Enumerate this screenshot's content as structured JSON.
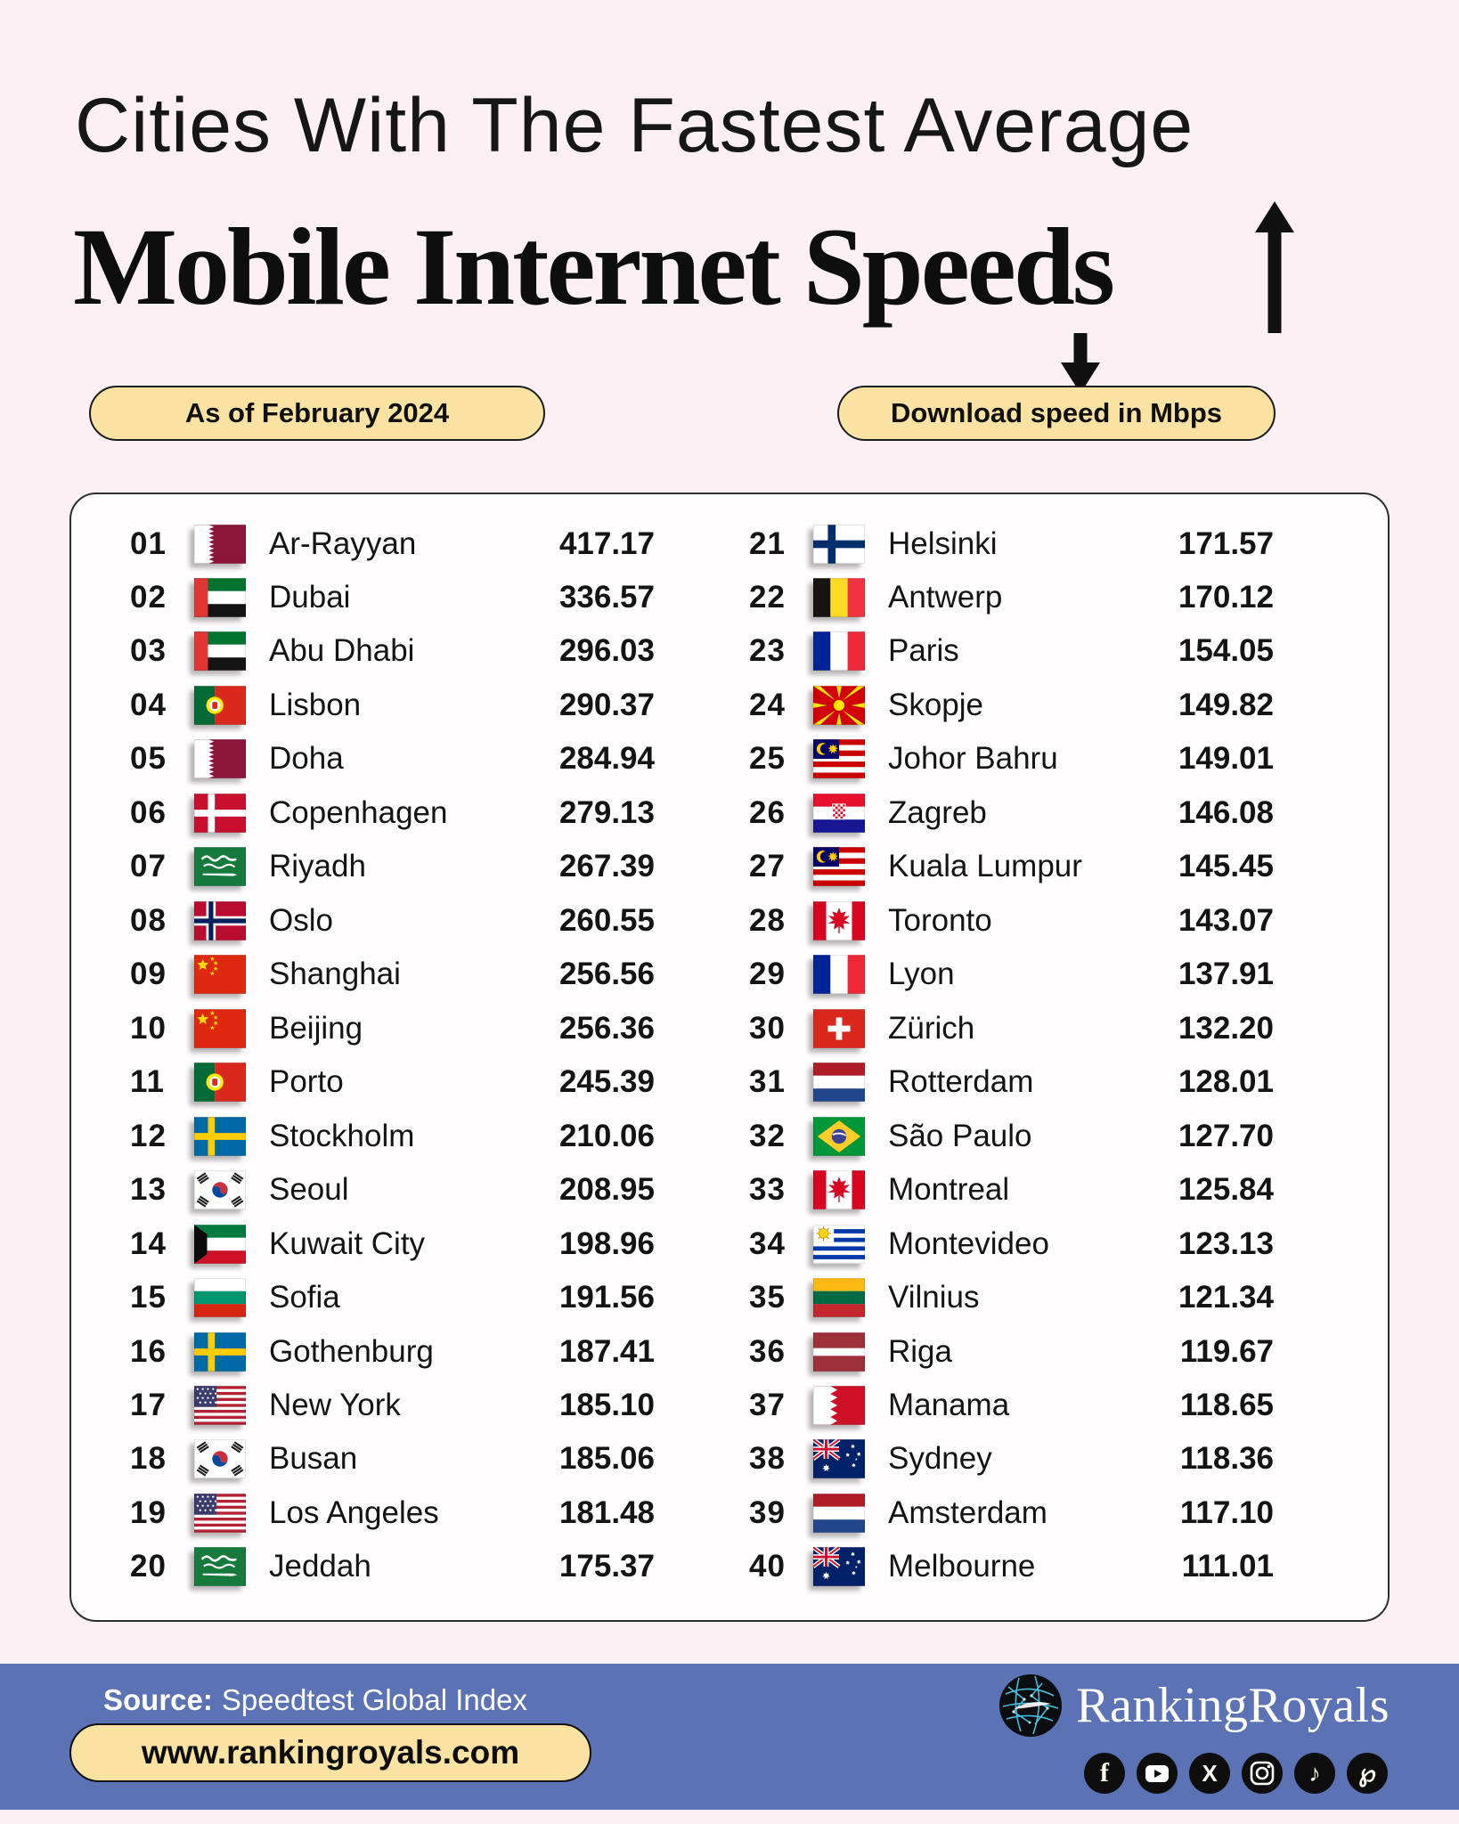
{
  "title": {
    "line1": "Cities With The Fastest Average",
    "line2": "Mobile Internet Speeds"
  },
  "badges": {
    "as_of": "As of February 2024",
    "unit": "Download speed in Mbps"
  },
  "icons": {
    "up_arrow": "up-arrow-icon",
    "down_arrow": "down-arrow-icon",
    "globe": "globe-network-icon"
  },
  "footer": {
    "source_label": "Source:",
    "source_value": "Speedtest Global Index",
    "website": "www.rankingroyals.com",
    "brand": "RankingRoyals",
    "social_icons": [
      "facebook",
      "youtube",
      "x",
      "instagram",
      "tiktok",
      "pinterest"
    ]
  },
  "colors": {
    "background_pink": "#fcf0f4",
    "panel_white": "#fffdfd",
    "accent_yellow": "#fae2a2",
    "footer_blue": "#5b72b4",
    "text_black": "#141414"
  },
  "chart_data": {
    "type": "table",
    "title": "Cities With The Fastest Average Mobile Internet Speeds",
    "as_of": "As of February 2024",
    "unit": "Download speed in Mbps",
    "columns": [
      "rank",
      "city",
      "country_flag",
      "speed_mbps"
    ],
    "rows": [
      [
        "01",
        "Ar-Rayyan",
        "qatar",
        "417.17"
      ],
      [
        "02",
        "Dubai",
        "uae",
        "336.57"
      ],
      [
        "03",
        "Abu Dhabi",
        "uae",
        "296.03"
      ],
      [
        "04",
        "Lisbon",
        "portugal",
        "290.37"
      ],
      [
        "05",
        "Doha",
        "qatar",
        "284.94"
      ],
      [
        "06",
        "Copenhagen",
        "denmark",
        "279.13"
      ],
      [
        "07",
        "Riyadh",
        "saudi_arabia",
        "267.39"
      ],
      [
        "08",
        "Oslo",
        "norway",
        "260.55"
      ],
      [
        "09",
        "Shanghai",
        "china",
        "256.56"
      ],
      [
        "10",
        "Beijing",
        "china",
        "256.36"
      ],
      [
        "11",
        "Porto",
        "portugal",
        "245.39"
      ],
      [
        "12",
        "Stockholm",
        "sweden",
        "210.06"
      ],
      [
        "13",
        "Seoul",
        "south_korea",
        "208.95"
      ],
      [
        "14",
        "Kuwait City",
        "kuwait",
        "198.96"
      ],
      [
        "15",
        "Sofia",
        "bulgaria",
        "191.56"
      ],
      [
        "16",
        "Gothenburg",
        "sweden",
        "187.41"
      ],
      [
        "17",
        "New York",
        "usa",
        "185.10"
      ],
      [
        "18",
        "Busan",
        "south_korea",
        "185.06"
      ],
      [
        "19",
        "Los Angeles",
        "usa",
        "181.48"
      ],
      [
        "20",
        "Jeddah",
        "saudi_arabia",
        "175.37"
      ],
      [
        "21",
        "Helsinki",
        "finland",
        "171.57"
      ],
      [
        "22",
        "Antwerp",
        "belgium",
        "170.12"
      ],
      [
        "23",
        "Paris",
        "france",
        "154.05"
      ],
      [
        "24",
        "Skopje",
        "north_macedonia",
        "149.82"
      ],
      [
        "25",
        "Johor Bahru",
        "malaysia",
        "149.01"
      ],
      [
        "26",
        "Zagreb",
        "croatia",
        "146.08"
      ],
      [
        "27",
        "Kuala Lumpur",
        "malaysia",
        "145.45"
      ],
      [
        "28",
        "Toronto",
        "canada",
        "143.07"
      ],
      [
        "29",
        "Lyon",
        "france",
        "137.91"
      ],
      [
        "30",
        "Zürich",
        "switzerland",
        "132.20"
      ],
      [
        "31",
        "Rotterdam",
        "netherlands",
        "128.01"
      ],
      [
        "32",
        "São Paulo",
        "brazil",
        "127.70"
      ],
      [
        "33",
        "Montreal",
        "canada",
        "125.84"
      ],
      [
        "34",
        "Montevideo",
        "uruguay",
        "123.13"
      ],
      [
        "35",
        "Vilnius",
        "lithuania",
        "121.34"
      ],
      [
        "36",
        "Riga",
        "latvia",
        "119.67"
      ],
      [
        "37",
        "Manama",
        "bahrain",
        "118.65"
      ],
      [
        "38",
        "Sydney",
        "australia",
        "118.36"
      ],
      [
        "39",
        "Amsterdam",
        "netherlands",
        "117.10"
      ],
      [
        "40",
        "Melbourne",
        "australia",
        "111.01"
      ]
    ]
  }
}
